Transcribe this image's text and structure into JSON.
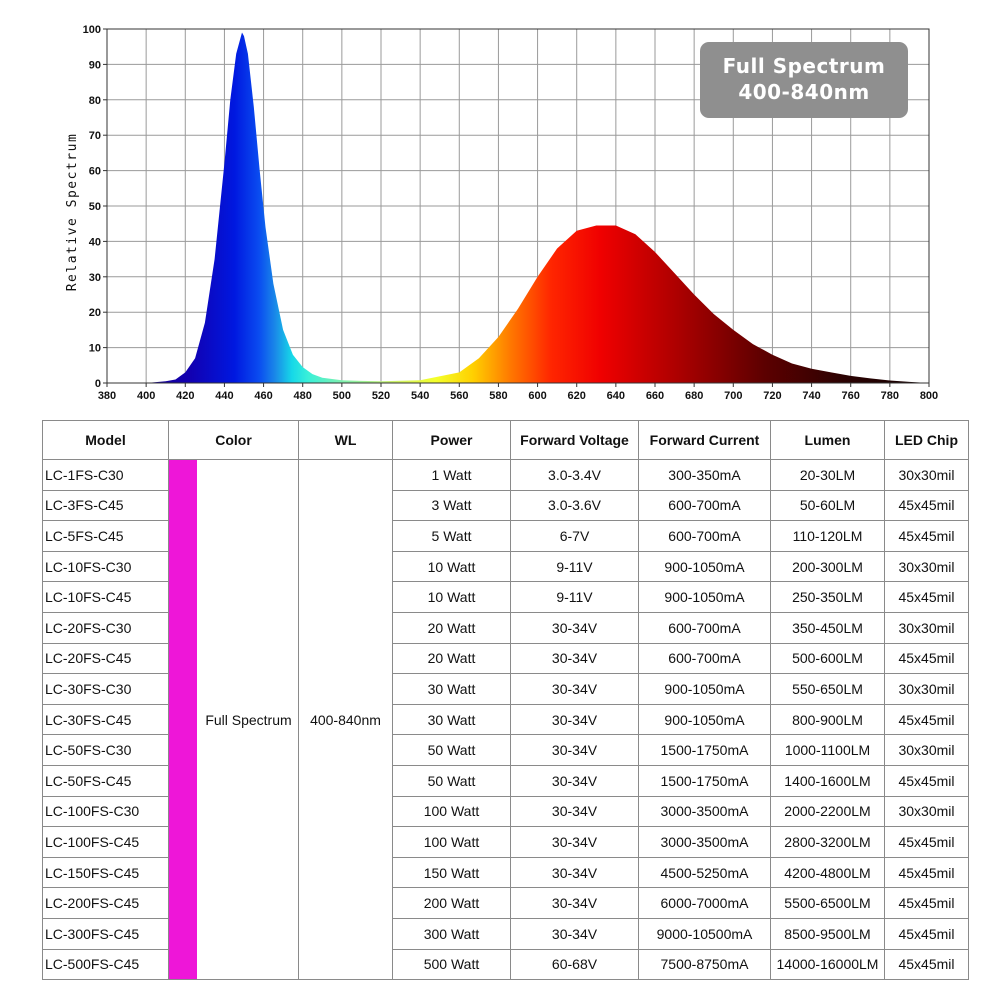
{
  "chart_data": {
    "type": "area",
    "ylabel": "Relative Spectrum",
    "xlabel": "",
    "xlim": [
      380,
      800
    ],
    "ylim": [
      0,
      100
    ],
    "x_ticks": [
      380,
      400,
      420,
      440,
      460,
      480,
      500,
      520,
      540,
      560,
      580,
      600,
      620,
      640,
      660,
      680,
      700,
      720,
      740,
      760,
      780,
      800
    ],
    "y_ticks": [
      0,
      10,
      20,
      30,
      40,
      50,
      60,
      70,
      80,
      90,
      100
    ],
    "grid": true,
    "series": [
      {
        "x": [
          380,
          400,
          410,
          415,
          420,
          425,
          430,
          435,
          440,
          443,
          446,
          449,
          450,
          452,
          455,
          458,
          461,
          465,
          470,
          475,
          480,
          485,
          490,
          500,
          510,
          520,
          540,
          560,
          570,
          580,
          590,
          600,
          610,
          620,
          630,
          640,
          650,
          660,
          670,
          680,
          690,
          700,
          710,
          720,
          730,
          740,
          750,
          760,
          770,
          780,
          790,
          800
        ],
        "y": [
          0,
          0,
          0.5,
          1,
          3,
          7,
          17,
          35,
          62,
          80,
          93,
          99,
          98,
          93,
          78,
          60,
          44,
          28,
          15,
          8,
          4.5,
          2.5,
          1.5,
          0.8,
          0.6,
          0.5,
          0.8,
          3,
          7,
          13,
          21,
          30,
          38,
          43,
          44.5,
          44.5,
          42,
          37,
          31,
          25,
          19.5,
          15,
          11,
          8,
          5.5,
          4,
          3,
          2,
          1.3,
          0.7,
          0.3,
          0
        ]
      }
    ]
  },
  "badge": {
    "line1": "Full Spectrum",
    "line2": "400-840nm"
  },
  "table": {
    "headers": [
      "Model",
      "Color",
      "WL",
      "Power",
      "Forward Voltage",
      "Forward Current",
      "Lumen",
      "LED Chip"
    ],
    "color": "Full Spectrum",
    "swatch_color": "#ee16d8",
    "wl": "400-840nm",
    "rows": [
      [
        "LC-1FS-C30",
        "1 Watt",
        "3.0-3.4V",
        "300-350mA",
        "20-30LM",
        "30x30mil"
      ],
      [
        "LC-3FS-C45",
        "3 Watt",
        "3.0-3.6V",
        "600-700mA",
        "50-60LM",
        "45x45mil"
      ],
      [
        "LC-5FS-C45",
        "5 Watt",
        "6-7V",
        "600-700mA",
        "110-120LM",
        "45x45mil"
      ],
      [
        "LC-10FS-C30",
        "10 Watt",
        "9-11V",
        "900-1050mA",
        "200-300LM",
        "30x30mil"
      ],
      [
        "LC-10FS-C45",
        "10 Watt",
        "9-11V",
        "900-1050mA",
        "250-350LM",
        "45x45mil"
      ],
      [
        "LC-20FS-C30",
        "20 Watt",
        "30-34V",
        "600-700mA",
        "350-450LM",
        "30x30mil"
      ],
      [
        "LC-20FS-C45",
        "20 Watt",
        "30-34V",
        "600-700mA",
        "500-600LM",
        "45x45mil"
      ],
      [
        "LC-30FS-C30",
        "30 Watt",
        "30-34V",
        "900-1050mA",
        "550-650LM",
        "30x30mil"
      ],
      [
        "LC-30FS-C45",
        "30 Watt",
        "30-34V",
        "900-1050mA",
        "800-900LM",
        "45x45mil"
      ],
      [
        "LC-50FS-C30",
        "50 Watt",
        "30-34V",
        "1500-1750mA",
        "1000-1100LM",
        "30x30mil"
      ],
      [
        "LC-50FS-C45",
        "50 Watt",
        "30-34V",
        "1500-1750mA",
        "1400-1600LM",
        "45x45mil"
      ],
      [
        "LC-100FS-C30",
        "100 Watt",
        "30-34V",
        "3000-3500mA",
        "2000-2200LM",
        "30x30mil"
      ],
      [
        "LC-100FS-C45",
        "100 Watt",
        "30-34V",
        "3000-3500mA",
        "2800-3200LM",
        "45x45mil"
      ],
      [
        "LC-150FS-C45",
        "150 Watt",
        "30-34V",
        "4500-5250mA",
        "4200-4800LM",
        "45x45mil"
      ],
      [
        "LC-200FS-C45",
        "200 Watt",
        "30-34V",
        "6000-7000mA",
        "5500-6500LM",
        "45x45mil"
      ],
      [
        "LC-300FS-C45",
        "300 Watt",
        "30-34V",
        "9000-10500mA",
        "8500-9500LM",
        "45x45mil"
      ],
      [
        "LC-500FS-C45",
        "500 Watt",
        "60-68V",
        "7500-8750mA",
        "14000-16000LM",
        "45x45mil"
      ]
    ]
  }
}
